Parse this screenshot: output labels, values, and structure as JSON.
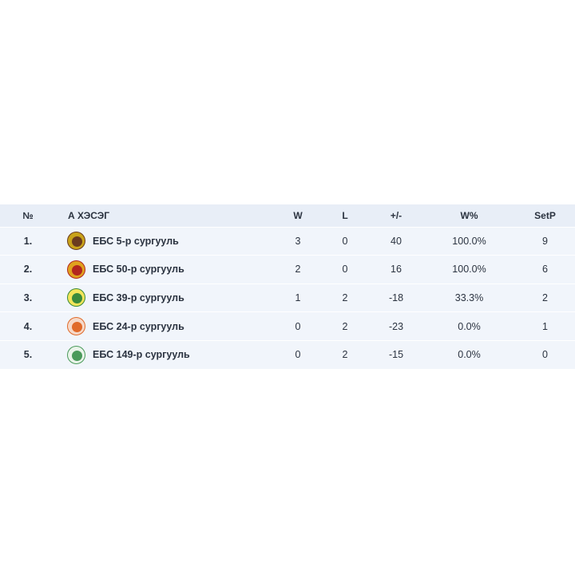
{
  "table": {
    "columns": {
      "pos": "№",
      "team": "А ХЭСЭГ",
      "w": "W",
      "l": "L",
      "diff": "+/-",
      "wp": "W%",
      "setp": "SetP"
    },
    "rows": [
      {
        "pos": "1.",
        "team": "ЕБС 5-р сургууль",
        "w": "3",
        "l": "0",
        "diff": "40",
        "wp": "100.0%",
        "setp": "9",
        "logo": {
          "icon": "school-emblem-icon",
          "outer": "#c9a31a",
          "inner": "#6b3b1f"
        }
      },
      {
        "pos": "2.",
        "team": "ЕБС 50-р сургууль",
        "w": "2",
        "l": "0",
        "diff": "16",
        "wp": "100.0%",
        "setp": "6",
        "logo": {
          "icon": "school-emblem-icon",
          "outer": "#e0a21e",
          "inner": "#b3261e"
        }
      },
      {
        "pos": "3.",
        "team": "ЕБС 39-р сургууль",
        "w": "1",
        "l": "2",
        "diff": "-18",
        "wp": "33.3%",
        "setp": "2",
        "logo": {
          "icon": "school-emblem-icon",
          "outer": "#f4e55a",
          "inner": "#3a8a3c"
        }
      },
      {
        "pos": "4.",
        "team": "ЕБС 24-р сургууль",
        "w": "0",
        "l": "2",
        "diff": "-23",
        "wp": "0.0%",
        "setp": "1",
        "logo": {
          "icon": "school-emblem-icon",
          "outer": "#f6d9c9",
          "inner": "#e06a2a"
        }
      },
      {
        "pos": "5.",
        "team": "ЕБС 149-р сургууль",
        "w": "0",
        "l": "2",
        "diff": "-15",
        "wp": "0.0%",
        "setp": "0",
        "logo": {
          "icon": "school-emblem-icon",
          "outer": "#eaf4ea",
          "inner": "#4a9a5a"
        }
      }
    ]
  }
}
